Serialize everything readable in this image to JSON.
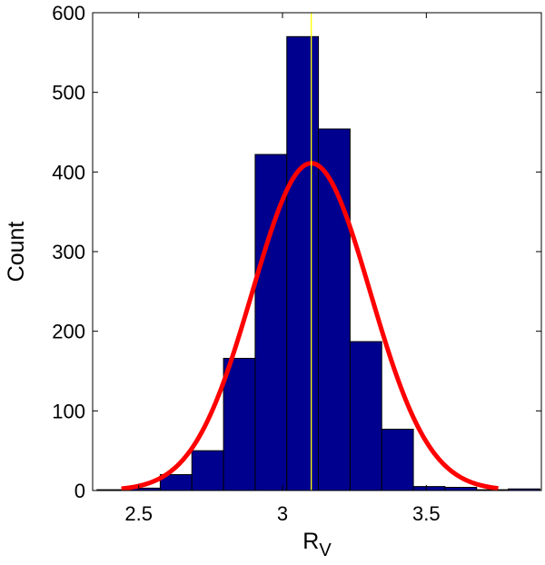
{
  "chart_data": {
    "type": "bar",
    "title": "",
    "xlabel": "R",
    "xlabel_subscript": "V",
    "ylabel": "Count",
    "xlim": [
      2.34,
      3.9
    ],
    "ylim": [
      0,
      600
    ],
    "xticks": [
      2.5,
      3,
      3.5
    ],
    "xtick_labels": [
      "2.5",
      "3",
      "3.5"
    ],
    "yticks": [
      0,
      100,
      200,
      300,
      400,
      500,
      600
    ],
    "ytick_labels": [
      "0",
      "100",
      "200",
      "300",
      "400",
      "500",
      "600"
    ],
    "grid": false,
    "bins": [
      {
        "x0": 2.355,
        "x1": 2.465,
        "value": 1
      },
      {
        "x0": 2.465,
        "x1": 2.575,
        "value": 3
      },
      {
        "x0": 2.575,
        "x1": 2.685,
        "value": 20
      },
      {
        "x0": 2.685,
        "x1": 2.795,
        "value": 50
      },
      {
        "x0": 2.795,
        "x1": 2.905,
        "value": 166
      },
      {
        "x0": 2.905,
        "x1": 3.015,
        "value": 422
      },
      {
        "x0": 3.015,
        "x1": 3.125,
        "value": 570
      },
      {
        "x0": 3.125,
        "x1": 3.235,
        "value": 454
      },
      {
        "x0": 3.235,
        "x1": 3.345,
        "value": 187
      },
      {
        "x0": 3.345,
        "x1": 3.455,
        "value": 77
      },
      {
        "x0": 3.455,
        "x1": 3.565,
        "value": 5
      },
      {
        "x0": 3.565,
        "x1": 3.675,
        "value": 4
      },
      {
        "x0": 3.675,
        "x1": 3.785,
        "value": 1
      },
      {
        "x0": 3.785,
        "x1": 3.895,
        "value": 2
      }
    ],
    "gaussian_fit": {
      "mean": 3.1,
      "sigma": 0.205,
      "peak": 411,
      "x_range": [
        2.44,
        3.75
      ]
    },
    "mean_line_x": 3.1,
    "colors": {
      "bars": "#00008f",
      "bar_edge": "#000000",
      "fit": "#ff0000",
      "mean_line": "#ffff00"
    }
  }
}
